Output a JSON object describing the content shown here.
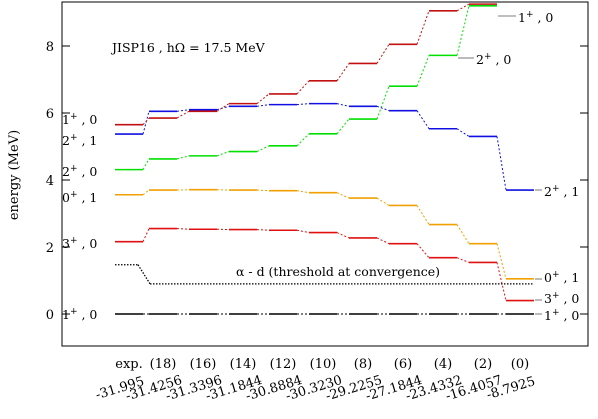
{
  "chart_data": {
    "type": "line",
    "annotation": "JISP16 , hΩ = 17.5 MeV",
    "ylabel": "energy (MeV)",
    "ylim": [
      -1,
      9.3
    ],
    "yticks": [
      0,
      2,
      4,
      6,
      8
    ],
    "grid": false,
    "categories": [
      {
        "label": "exp.",
        "value": "-31.995"
      },
      {
        "label": "(18)",
        "value": "-31.4256"
      },
      {
        "label": "(16)",
        "value": "-31.3396"
      },
      {
        "label": "(14)",
        "value": "-31.1844"
      },
      {
        "label": "(12)",
        "value": "-30.8884"
      },
      {
        "label": "(10)",
        "value": "-30.3230"
      },
      {
        "label": "(8)",
        "value": "-29.2255"
      },
      {
        "label": "(6)",
        "value": "-27.1844"
      },
      {
        "label": "(4)",
        "value": "-23.4332"
      },
      {
        "label": "(2)",
        "value": "-16.4057"
      },
      {
        "label": "(0)",
        "value": "-8.7925"
      }
    ],
    "series": [
      {
        "color": "#000000",
        "left_label": {
          "j": "1",
          "p": "+",
          "t": "0"
        },
        "right_label": {
          "j": "1",
          "p": "+",
          "t": "0"
        },
        "values": [
          0,
          0,
          0,
          0,
          0,
          0,
          0,
          0,
          0,
          0,
          0
        ]
      },
      {
        "color": "#e01010",
        "left_label": {
          "j": "3",
          "p": "+",
          "t": "0"
        },
        "right_label": {
          "j": "3",
          "p": "+",
          "t": "0"
        },
        "values": [
          2.16,
          2.55,
          2.53,
          2.52,
          2.5,
          2.43,
          2.27,
          2.1,
          1.68,
          1.54,
          0.4
        ]
      },
      {
        "color": "#f0a000",
        "left_label": {
          "j": "0",
          "p": "+",
          "t": "1"
        },
        "right_label": {
          "j": "0",
          "p": "+",
          "t": "1"
        },
        "values": [
          3.56,
          3.7,
          3.71,
          3.7,
          3.68,
          3.62,
          3.46,
          3.24,
          2.67,
          2.1,
          1.05
        ]
      },
      {
        "color": "#00e000",
        "left_label": {
          "j": "2",
          "p": "+",
          "t": "0"
        },
        "right_label": {
          "j": "2",
          "p": "+",
          "t": "0"
        },
        "values": [
          4.31,
          4.63,
          4.72,
          4.85,
          5.02,
          5.38,
          5.82,
          6.8,
          7.72,
          9.2,
          null
        ]
      },
      {
        "color": "#1010e0",
        "left_label": {
          "j": "2",
          "p": "+",
          "t": "1"
        },
        "right_label": {
          "j": "2",
          "p": "+",
          "t": "1"
        },
        "values": [
          5.37,
          6.05,
          6.1,
          6.2,
          6.25,
          6.28,
          6.2,
          6.07,
          5.53,
          5.3,
          3.7
        ]
      },
      {
        "color": "#c01010",
        "left_label": {
          "j": "1",
          "p": "+",
          "t": "0"
        },
        "right_label": {
          "j": "1",
          "p": "+",
          "t": "0"
        },
        "values": [
          5.65,
          5.85,
          6.05,
          6.28,
          6.57,
          6.96,
          7.48,
          8.05,
          9.05,
          9.25,
          null
        ]
      }
    ],
    "threshold": {
      "label": "α - d (threshold at convergence)",
      "exp_value": 1.47,
      "converged_value": 0.9
    },
    "right_label_map": {
      "0": 0,
      "1": 1,
      "2": 2,
      "3": 3,
      "4": 4,
      "5": 5
    }
  }
}
